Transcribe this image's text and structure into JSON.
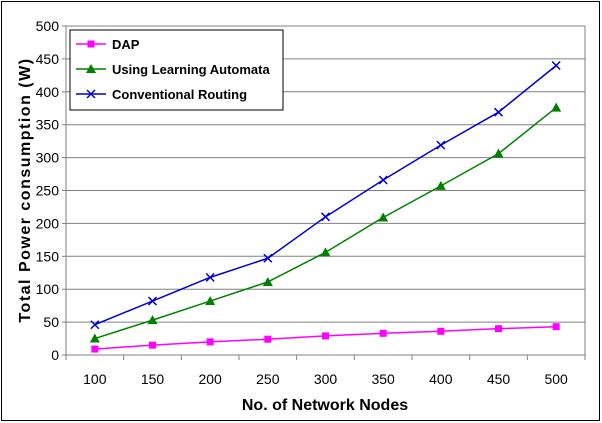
{
  "chart_data": {
    "type": "line",
    "title": "",
    "xlabel": "No. of Network Nodes",
    "ylabel": "Total Power consumption (W)",
    "x": [
      100,
      150,
      200,
      250,
      300,
      350,
      400,
      450,
      500
    ],
    "ylim": [
      0,
      500
    ],
    "yticks": [
      0,
      50,
      100,
      150,
      200,
      250,
      300,
      350,
      400,
      450,
      500
    ],
    "grid": "horizontal",
    "legend_position": "top-left",
    "series": [
      {
        "name": "DAP",
        "color": "#ff00ff",
        "marker": "square",
        "values": [
          9,
          15,
          20,
          24,
          29,
          33,
          36,
          40,
          43
        ]
      },
      {
        "name": "Using Learning Automata",
        "color": "#008000",
        "marker": "triangle",
        "values": [
          25,
          53,
          82,
          111,
          156,
          209,
          257,
          306,
          376
        ]
      },
      {
        "name": "Conventional Routing",
        "color": "#0000cc",
        "marker": "x",
        "values": [
          46,
          82,
          118,
          147,
          210,
          266,
          319,
          369,
          440
        ]
      }
    ]
  }
}
